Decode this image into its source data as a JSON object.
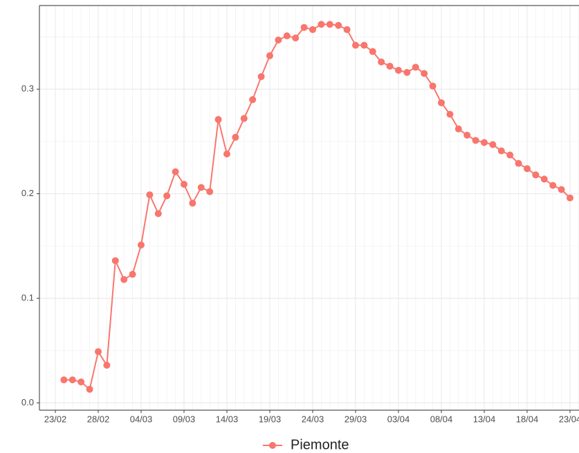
{
  "chart_data": {
    "type": "line",
    "categories": [
      "24/02",
      "25/02",
      "26/02",
      "27/02",
      "28/02",
      "29/02",
      "01/03",
      "02/03",
      "03/03",
      "04/03",
      "05/03",
      "06/03",
      "07/03",
      "08/03",
      "09/03",
      "10/03",
      "11/03",
      "12/03",
      "13/03",
      "14/03",
      "15/03",
      "16/03",
      "17/03",
      "18/03",
      "19/03",
      "20/03",
      "21/03",
      "22/03",
      "23/03",
      "24/03",
      "25/03",
      "26/03",
      "27/03",
      "28/03",
      "29/03",
      "30/03",
      "31/03",
      "01/04",
      "02/04",
      "03/04",
      "04/04",
      "05/04",
      "06/04",
      "07/04",
      "08/04",
      "09/04",
      "10/04",
      "11/04",
      "12/04",
      "13/04",
      "14/04",
      "15/04",
      "16/04",
      "17/04",
      "18/04",
      "19/04",
      "20/04",
      "21/04",
      "22/04",
      "23/04"
    ],
    "series": [
      {
        "name": "Piemonte",
        "color": "#f8766d",
        "values": [
          0.022,
          0.022,
          0.02,
          0.013,
          0.049,
          0.036,
          0.136,
          0.118,
          0.123,
          0.151,
          0.199,
          0.181,
          0.198,
          0.221,
          0.209,
          0.191,
          0.206,
          0.202,
          0.271,
          0.238,
          0.254,
          0.272,
          0.29,
          0.312,
          0.332,
          0.347,
          0.351,
          0.349,
          0.359,
          0.357,
          0.362,
          0.362,
          0.361,
          0.357,
          0.342,
          0.342,
          0.336,
          0.326,
          0.322,
          0.318,
          0.316,
          0.321,
          0.315,
          0.303,
          0.287,
          0.276,
          0.262,
          0.256,
          0.251,
          0.249,
          0.247,
          0.241,
          0.237,
          0.229,
          0.224,
          0.218,
          0.214,
          0.208,
          0.204,
          0.196
        ]
      }
    ],
    "xticks": [
      "23/02",
      "28/02",
      "04/03",
      "09/03",
      "14/03",
      "19/03",
      "24/03",
      "29/03",
      "03/04",
      "08/04",
      "13/04",
      "18/04",
      "23/04"
    ],
    "ylim": [
      -0.007,
      0.38
    ],
    "yticks": [
      {
        "value": 0,
        "label": "0.0"
      },
      0.1,
      0.2,
      0.3
    ],
    "grid": true,
    "legend": "bottom"
  }
}
